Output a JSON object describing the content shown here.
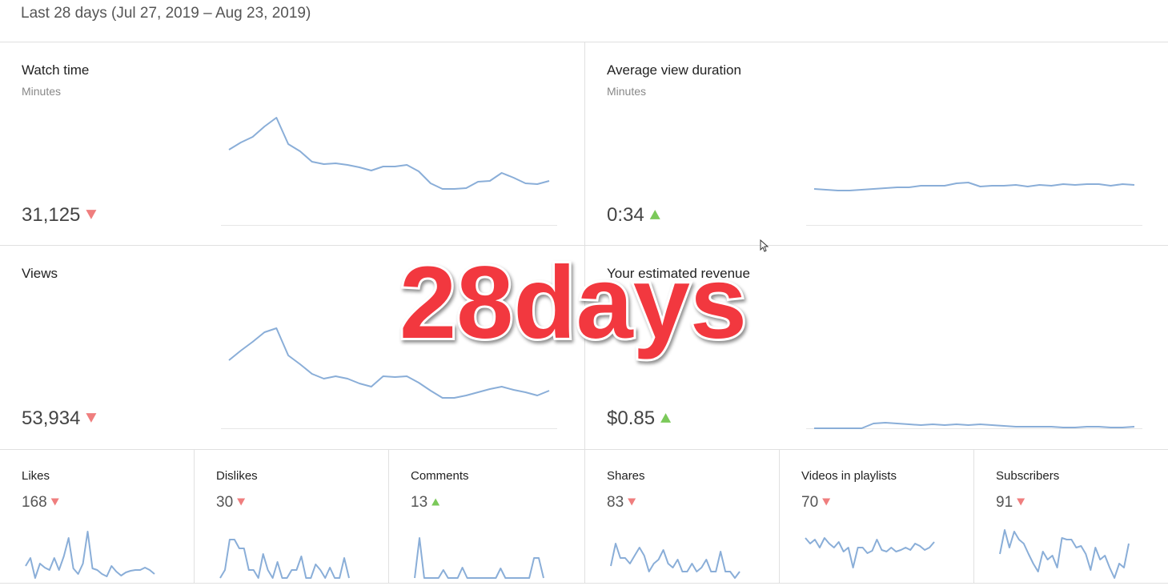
{
  "header": {
    "title": "Last 28 days (Jul 27, 2019 – Aug 23, 2019)"
  },
  "cards": [
    {
      "title": "Watch time",
      "subtitle": "Minutes",
      "value": "31,125",
      "trend": "down",
      "spark": [
        94,
        103,
        110,
        123,
        134,
        101,
        92,
        79,
        76,
        77,
        75,
        72,
        68,
        73,
        73,
        75,
        67,
        52,
        45,
        45,
        46,
        54,
        55,
        65,
        59,
        52,
        51,
        55
      ]
    },
    {
      "title": "Average view duration",
      "subtitle": "Minutes",
      "value": "0:34",
      "trend": "up",
      "spark": [
        45,
        44,
        43,
        43,
        44,
        45,
        46,
        47,
        47,
        49,
        49,
        49,
        52,
        53,
        48,
        49,
        49,
        50,
        48,
        50,
        49,
        51,
        50,
        51,
        51,
        49,
        51,
        50
      ]
    },
    {
      "title": "Views",
      "value": "53,934",
      "trend": "down",
      "spark": [
        85,
        97,
        108,
        120,
        125,
        91,
        80,
        68,
        62,
        65,
        62,
        56,
        52,
        65,
        64,
        65,
        57,
        47,
        38,
        38,
        41,
        45,
        49,
        52,
        48,
        45,
        41,
        47
      ]
    },
    {
      "title": "Your estimated revenue",
      "value": "$0.85",
      "trend": "up",
      "spark": [
        0,
        0,
        0,
        0,
        0,
        6,
        7,
        6,
        5,
        4,
        5,
        4,
        5,
        4,
        5,
        4,
        3,
        2,
        2,
        2,
        2,
        1,
        1,
        2,
        2,
        1,
        1,
        2
      ]
    }
  ],
  "small_cards": [
    {
      "title": "Likes",
      "value": "168",
      "trend": "down",
      "spark": [
        15,
        25,
        0,
        18,
        13,
        10,
        25,
        10,
        27,
        50,
        12,
        5,
        18,
        58,
        12,
        10,
        5,
        2,
        15,
        8,
        3,
        7,
        9,
        10,
        10,
        13,
        10,
        5
      ]
    },
    {
      "title": "Dislikes",
      "value": "30",
      "trend": "down",
      "spark": [
        0,
        10,
        48,
        48,
        37,
        37,
        10,
        10,
        0,
        30,
        10,
        0,
        20,
        0,
        0,
        10,
        10,
        27,
        0,
        0,
        17,
        10,
        0,
        13,
        0,
        0,
        25,
        0
      ]
    },
    {
      "title": "Comments",
      "value": "13",
      "trend": "up",
      "spark": [
        0,
        50,
        0,
        0,
        0,
        0,
        10,
        0,
        0,
        0,
        13,
        0,
        0,
        0,
        0,
        0,
        0,
        0,
        12,
        0,
        0,
        0,
        0,
        0,
        0,
        25,
        25,
        0
      ]
    },
    {
      "title": "Shares",
      "value": "83",
      "trend": "down",
      "spark": [
        15,
        43,
        25,
        25,
        18,
        28,
        38,
        28,
        8,
        18,
        23,
        35,
        18,
        13,
        23,
        8,
        8,
        18,
        8,
        13,
        23,
        8,
        8,
        33,
        8,
        8,
        0,
        8
      ]
    },
    {
      "title": "Videos in playlists",
      "value": "70",
      "trend": "down",
      "spark": [
        50,
        43,
        48,
        38,
        50,
        43,
        38,
        45,
        33,
        38,
        13,
        38,
        38,
        31,
        34,
        48,
        35,
        33,
        38,
        33,
        35,
        38,
        35,
        43,
        40,
        35,
        38,
        45
      ]
    },
    {
      "title": "Subscribers",
      "value": "91",
      "trend": "down",
      "spark": [
        30,
        60,
        38,
        58,
        48,
        43,
        30,
        18,
        8,
        33,
        23,
        28,
        13,
        50,
        48,
        48,
        38,
        40,
        30,
        10,
        38,
        23,
        28,
        13,
        0,
        18,
        13,
        43
      ]
    }
  ],
  "overlay": {
    "text": "28days"
  }
}
